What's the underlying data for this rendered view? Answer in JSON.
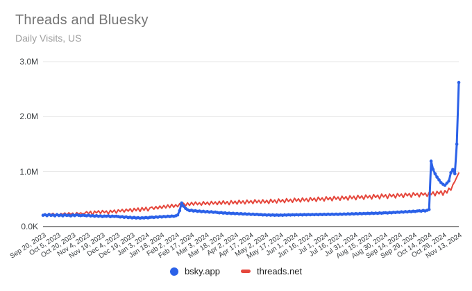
{
  "header": {
    "title": "Threads and Bluesky",
    "subtitle": "Daily Visits, US"
  },
  "legend": {
    "items": [
      {
        "label": "bsky.app",
        "marker": "circle",
        "color": "#2b61e8"
      },
      {
        "label": "threads.net",
        "marker": "dash",
        "color": "#e5473c"
      }
    ]
  },
  "chart_data": {
    "type": "line",
    "title": "Threads and Bluesky",
    "subtitle": "Daily Visits, US",
    "unit": "daily visits (values in thousands)",
    "x_start": "Sep 20, 2023",
    "x_end": "Nov 13, 2024",
    "x_tick_interval_days": 15,
    "sample_interval_days": 2,
    "grid": true,
    "legend_position": "bottom",
    "ylim_k": [
      0,
      3000
    ],
    "y_ticks": [
      {
        "label": "3.0M",
        "value_k": 3000
      },
      {
        "label": "2.0M",
        "value_k": 2000
      },
      {
        "label": "1.0M",
        "value_k": 1000
      },
      {
        "label": "0.0K",
        "value_k": 0
      }
    ],
    "x_tick_labels": [
      "Sep 20, 2023",
      "Oct 5, 2023",
      "Oct 20, 2023",
      "Nov 4, 2023",
      "Nov 19, 2023",
      "Dec 4, 2023",
      "Dec 19, 2023",
      "Jan 3, 2024",
      "Jan 18, 2024",
      "Feb 2, 2024",
      "Feb 17, 2024",
      "Mar 3, 2024",
      "Mar 18, 2024",
      "Apr 2, 2024",
      "Apr 17, 2024",
      "May 2, 2024",
      "May 17, 2024",
      "Jun 1, 2024",
      "Jun 16, 2024",
      "Jul 1, 2024",
      "Jul 16, 2024",
      "Jul 31, 2024",
      "Aug 15, 2024",
      "Aug 30, 2024",
      "Sep 14, 2024",
      "Sep 29, 2024",
      "Oct 14, 2024",
      "Oct 29, 2024",
      "Nov 13, 2024"
    ],
    "series": [
      {
        "name": "bsky.app",
        "color": "#2b61e8",
        "line_width": 3,
        "markers": true,
        "values_k": [
          205,
          215,
          198,
          220,
          203,
          212,
          195,
          218,
          200,
          210,
          196,
          215,
          202,
          208,
          194,
          212,
          199,
          216,
          204,
          198,
          207,
          203,
          196,
          208,
          192,
          200,
          188,
          198,
          185,
          195,
          182,
          192,
          186,
          196,
          180,
          190,
          184,
          188,
          182,
          174,
          180,
          168,
          176,
          162,
          170,
          158,
          166,
          155,
          163,
          152,
          160,
          156,
          165,
          158,
          168,
          172,
          165,
          175,
          170,
          180,
          174,
          184,
          178,
          188,
          182,
          192,
          186,
          196,
          210,
          290,
          430,
          370,
          330,
          305,
          290,
          298,
          282,
          290,
          276,
          284,
          270,
          278,
          266,
          274,
          262,
          270,
          258,
          264,
          256,
          248,
          254,
          244,
          250,
          240,
          246,
          236,
          242,
          233,
          239,
          230,
          236,
          227,
          232,
          224,
          229,
          221,
          226,
          218,
          223,
          216,
          218,
          210,
          216,
          208,
          214,
          207,
          213,
          206,
          212,
          205,
          211,
          206,
          213,
          208,
          215,
          209,
          216,
          210,
          217,
          211,
          218,
          212,
          219,
          213,
          220,
          214,
          221,
          215,
          222,
          216,
          223,
          217,
          224,
          218,
          225,
          219,
          226,
          220,
          227,
          221,
          228,
          222,
          230,
          224,
          232,
          226,
          234,
          228,
          236,
          230,
          238,
          232,
          240,
          234,
          242,
          236,
          244,
          238,
          246,
          240,
          248,
          242,
          250,
          252,
          246,
          256,
          250,
          260,
          254,
          264,
          258,
          268,
          262,
          272,
          266,
          276,
          270,
          280,
          274,
          284,
          288,
          280,
          292,
          284,
          296,
          310,
          1190,
          1040,
          960,
          900,
          850,
          800,
          770,
          750,
          790,
          830,
          980,
          1040,
          960,
          1500,
          2620
        ]
      },
      {
        "name": "threads.net",
        "color": "#e5473c",
        "line_width": 2,
        "markers": false,
        "values_k": [
          212,
          232,
          205,
          238,
          215,
          242,
          208,
          235,
          195,
          240,
          218,
          248,
          210,
          252,
          222,
          246,
          205,
          255,
          228,
          250,
          232,
          240,
          272,
          235,
          278,
          205,
          282,
          248,
          288,
          238,
          292,
          252,
          285,
          230,
          295,
          258,
          300,
          245,
          305,
          272,
          312,
          265,
          318,
          280,
          325,
          270,
          332,
          288,
          338,
          275,
          345,
          295,
          350,
          285,
          340,
          355,
          315,
          365,
          322,
          375,
          330,
          385,
          338,
          395,
          345,
          405,
          352,
          398,
          360,
          415,
          368,
          425,
          375,
          432,
          385,
          440,
          392,
          448,
          398,
          435,
          390,
          452,
          402,
          445,
          395,
          458,
          408,
          450,
          400,
          460,
          405,
          468,
          412,
          455,
          398,
          472,
          418,
          462,
          408,
          478,
          425,
          468,
          412,
          482,
          430,
          472,
          418,
          488,
          435,
          478,
          425,
          488,
          432,
          478,
          420,
          495,
          440,
          485,
          428,
          502,
          448,
          492,
          435,
          508,
          455,
          498,
          440,
          515,
          462,
          505,
          448,
          520,
          468,
          510,
          452,
          528,
          475,
          518,
          458,
          535,
          482,
          525,
          465,
          542,
          488,
          532,
          470,
          548,
          495,
          538,
          478,
          552,
          500,
          545,
          482,
          560,
          508,
          552,
          488,
          568,
          515,
          558,
          495,
          575,
          522,
          565,
          500,
          582,
          530,
          572,
          505,
          590,
          538,
          580,
          512,
          592,
          545,
          585,
          520,
          600,
          552,
          592,
          528,
          608,
          560,
          600,
          535,
          615,
          568,
          605,
          540,
          618,
          572,
          610,
          548,
          622,
          580,
          630,
          560,
          640,
          595,
          648,
          570,
          655,
          610,
          700,
          660,
          760,
          820,
          900,
          975
        ]
      }
    ]
  }
}
